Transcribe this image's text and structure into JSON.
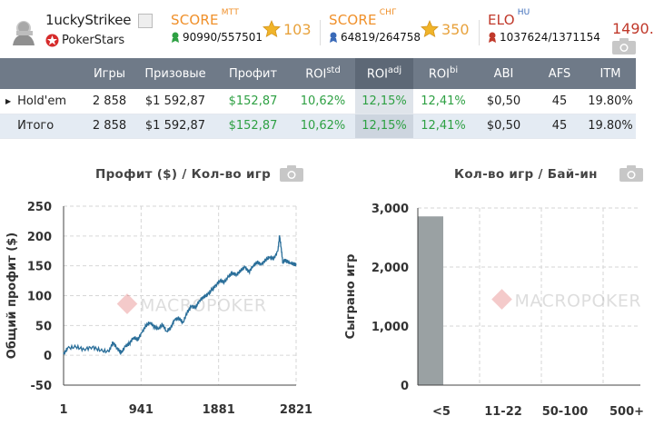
{
  "user": {
    "name": "1uckyStrikee",
    "room": "PokerStars"
  },
  "scores": {
    "mtt": {
      "title": "SCORE",
      "sub": "МТТ",
      "rank": "90990/557501",
      "value": "103"
    },
    "cis": {
      "title": "SCORE",
      "sub": "СНГ",
      "rank": "64819/264758",
      "value": "350"
    },
    "elo": {
      "title": "ELO",
      "sub": "HU",
      "rank": "1037624/1371154",
      "value": "1490."
    }
  },
  "colors": {
    "accent_orange": "#f0902a",
    "elo_red": "#c0392b",
    "profit_green": "#2ea043",
    "header_gray": "#6f7a88",
    "line_blue": "#2b6f9a",
    "bar_gray": "#9aa1a3"
  },
  "table": {
    "headers": [
      "Игры",
      "Призовые",
      "Профит",
      "ROI",
      "ROI",
      "ROI",
      "ABI",
      "AFS",
      "ITM"
    ],
    "header_sups": [
      "",
      "",
      "",
      "std",
      "adj",
      "bi",
      "",
      "",
      ""
    ],
    "rows": [
      {
        "label": "Hold'em",
        "cells": [
          "2 858",
          "$1 592,87",
          "$152,87",
          "10,62%",
          "12,15%",
          "12,41%",
          "$0,50",
          "45",
          "19.80%"
        ]
      },
      {
        "label": "Итого",
        "cells": [
          "2 858",
          "$1 592,87",
          "$152,87",
          "10,62%",
          "12,15%",
          "12,41%",
          "$0,50",
          "45",
          "19.80%"
        ]
      }
    ]
  },
  "chart1": {
    "title": "Профит ($) / Кол-во игр",
    "watermark": "MACROPOKER",
    "chart_data": {
      "type": "line",
      "ylabel": "Общий профит ($)",
      "xlabel": "",
      "xlim": [
        1,
        2821
      ],
      "ylim": [
        -50,
        250
      ],
      "x_ticks": [
        "1",
        "941",
        "1881",
        "2821"
      ],
      "y_ticks": [
        "250",
        "200",
        "150",
        "100",
        "50",
        "0",
        "-50"
      ],
      "grid": true,
      "series": [
        {
          "x": [
            1,
            50,
            150,
            250,
            350,
            450,
            550,
            600,
            650,
            700,
            750,
            800,
            850,
            900,
            950,
            1000,
            1050,
            1100,
            1150,
            1200,
            1250,
            1300,
            1350,
            1400,
            1450,
            1500,
            1550,
            1600,
            1650,
            1700,
            1750,
            1800,
            1850,
            1900,
            1950,
            2000,
            2050,
            2100,
            2150,
            2200,
            2250,
            2300,
            2350,
            2400,
            2450,
            2500,
            2550,
            2600,
            2620,
            2640,
            2660,
            2680,
            2700,
            2750,
            2800,
            2821
          ],
          "y": [
            2,
            12,
            14,
            10,
            14,
            8,
            6,
            22,
            12,
            4,
            15,
            20,
            30,
            26,
            38,
            50,
            55,
            48,
            44,
            52,
            40,
            46,
            60,
            62,
            55,
            72,
            82,
            80,
            92,
            98,
            102,
            110,
            118,
            126,
            122,
            132,
            138,
            135,
            142,
            148,
            140,
            150,
            156,
            152,
            160,
            165,
            162,
            175,
            200,
            180,
            155,
            160,
            158,
            155,
            153,
            152
          ]
        }
      ]
    }
  },
  "chart2": {
    "title": "Кол-во игр / Бай-ин",
    "watermark": "MACROPOKER",
    "chart_data": {
      "type": "bar",
      "ylabel": "Сыграно игр",
      "categories": [
        "<5",
        "11-22",
        "50-100",
        "500+"
      ],
      "values": [
        2858,
        0,
        0,
        0
      ],
      "ylim": [
        0,
        3000
      ],
      "y_ticks": [
        "3,000",
        "2,000",
        "1,000",
        "0"
      ],
      "grid": true
    }
  }
}
